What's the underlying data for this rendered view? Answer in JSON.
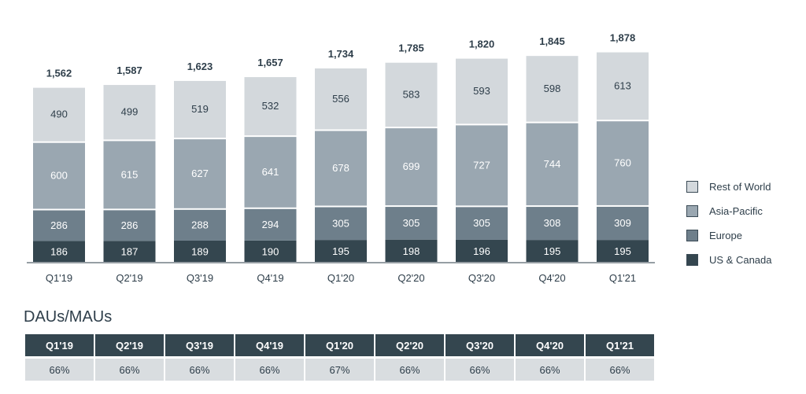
{
  "chart_data": {
    "type": "bar",
    "stacked": true,
    "categories": [
      "Q1'19",
      "Q2'19",
      "Q3'19",
      "Q4'19",
      "Q1'20",
      "Q2'20",
      "Q3'20",
      "Q4'20",
      "Q1'21"
    ],
    "totals": [
      "1,562",
      "1,587",
      "1,623",
      "1,657",
      "1,734",
      "1,785",
      "1,820",
      "1,845",
      "1,878"
    ],
    "series": [
      {
        "name": "US & Canada",
        "color": "#34464f",
        "values": [
          186,
          187,
          189,
          190,
          195,
          198,
          196,
          195,
          195
        ]
      },
      {
        "name": "Europe",
        "color": "#6e7f8b",
        "values": [
          286,
          286,
          288,
          294,
          305,
          305,
          305,
          308,
          309
        ]
      },
      {
        "name": "Asia-Pacific",
        "color": "#9aa7b1",
        "values": [
          600,
          615,
          627,
          641,
          678,
          699,
          727,
          744,
          760
        ]
      },
      {
        "name": "Rest of World",
        "color": "#d3d8dc",
        "values": [
          490,
          499,
          519,
          532,
          556,
          583,
          593,
          598,
          613
        ]
      }
    ],
    "legend_position": "right",
    "grid": false
  },
  "legend": [
    {
      "label": "Rest of World",
      "color": "#d3d8dc"
    },
    {
      "label": "Asia-Pacific",
      "color": "#9aa7b1"
    },
    {
      "label": "Europe",
      "color": "#6e7f8b"
    },
    {
      "label": "US & Canada",
      "color": "#34464f"
    }
  ],
  "dau_mau": {
    "title": "DAUs/MAUs",
    "headers": [
      "Q1'19",
      "Q2'19",
      "Q3'19",
      "Q4'19",
      "Q1'20",
      "Q2'20",
      "Q3'20",
      "Q4'20",
      "Q1'21"
    ],
    "values": [
      "66%",
      "66%",
      "66%",
      "66%",
      "67%",
      "66%",
      "66%",
      "66%",
      "66%"
    ]
  }
}
